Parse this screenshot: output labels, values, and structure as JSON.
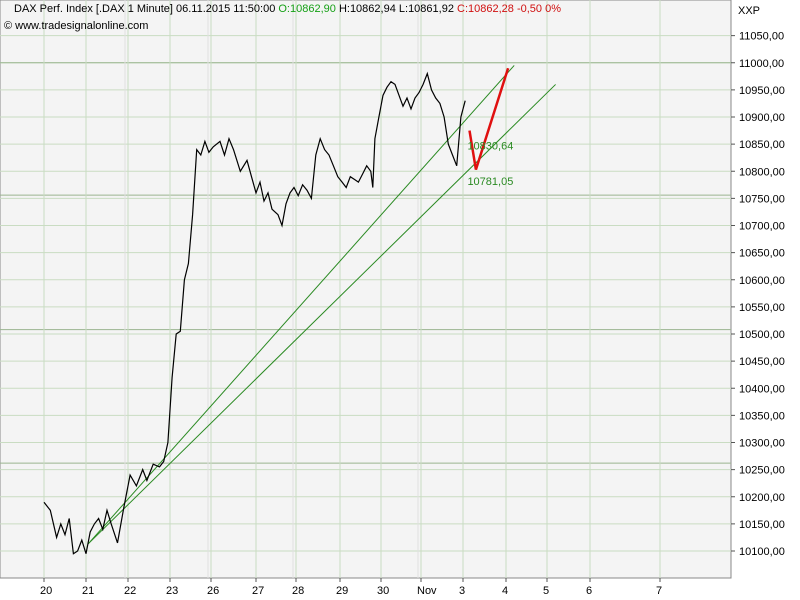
{
  "header": {
    "title": "DAX Perf. Index [.DAX  1 Minute] 06.11.2015 11:50:00",
    "open": "O:10862,90",
    "high": "H:10862,94",
    "low": "L:10861,92",
    "close": "C:10862,28",
    "change": "-0,50",
    "change_pct": "0%",
    "website": "www.tradesignalonline.com",
    "symbol_label": "XXP"
  },
  "colors": {
    "background": "#ffffff",
    "plot_bg": "#f4f4f4",
    "grid_light": "#c9dcc2",
    "grid_dark": "#9ab58f",
    "price_line": "#000000",
    "trend_line": "#2a8a22",
    "forecast_line": "#e01010",
    "open_color": "#16a016",
    "close_color": "#d01010"
  },
  "chart_data": {
    "type": "line",
    "title": "DAX Perf. Index [.DAX  1 Minute]",
    "x_tick_labels": [
      "20",
      "21",
      "22",
      "23",
      "26",
      "27",
      "28",
      "29",
      "30",
      "Nov",
      "3",
      "4",
      "5",
      "6",
      "7"
    ],
    "y_tick_labels": [
      "10100,00",
      "10150,00",
      "10200,00",
      "10250,00",
      "10300,00",
      "10350,00",
      "10400,00",
      "10450,00",
      "10500,00",
      "10550,00",
      "10600,00",
      "10650,00",
      "10700,00",
      "10750,00",
      "10800,00",
      "10850,00",
      "10900,00",
      "10950,00",
      "11000,00",
      "11050,00"
    ],
    "ylim": [
      10070,
      11085
    ],
    "xlim": [
      19.2,
      29.3
    ],
    "grid": true,
    "horizontal_levels": [
      11000,
      10756,
      10508,
      10262
    ],
    "price_series": {
      "name": "DAX",
      "points": [
        [
          19.2,
          10190
        ],
        [
          19.35,
          10175
        ],
        [
          19.5,
          10125
        ],
        [
          19.6,
          10150
        ],
        [
          19.7,
          10130
        ],
        [
          19.8,
          10160
        ],
        [
          19.9,
          10095
        ],
        [
          20.0,
          10100
        ],
        [
          20.1,
          10120
        ],
        [
          20.2,
          10095
        ],
        [
          20.3,
          10135
        ],
        [
          20.4,
          10150
        ],
        [
          20.5,
          10160
        ],
        [
          20.6,
          10140
        ],
        [
          20.7,
          10175
        ],
        [
          20.8,
          10150
        ],
        [
          20.95,
          10115
        ],
        [
          21.1,
          10180
        ],
        [
          21.25,
          10240
        ],
        [
          21.4,
          10220
        ],
        [
          21.55,
          10250
        ],
        [
          21.65,
          10230
        ],
        [
          21.8,
          10260
        ],
        [
          21.95,
          10255
        ],
        [
          22.05,
          10265
        ],
        [
          22.15,
          10300
        ],
        [
          22.25,
          10420
        ],
        [
          22.35,
          10500
        ],
        [
          22.45,
          10505
        ],
        [
          22.55,
          10600
        ],
        [
          22.65,
          10630
        ],
        [
          22.75,
          10720
        ],
        [
          22.85,
          10840
        ],
        [
          22.95,
          10830
        ],
        [
          23.05,
          10855
        ],
        [
          23.15,
          10835
        ],
        [
          23.25,
          10845
        ],
        [
          23.4,
          10855
        ],
        [
          23.5,
          10830
        ],
        [
          23.6,
          10860
        ],
        [
          23.7,
          10840
        ],
        [
          23.85,
          10800
        ],
        [
          24.0,
          10820
        ],
        [
          24.1,
          10790
        ],
        [
          24.2,
          10760
        ],
        [
          24.3,
          10780
        ],
        [
          24.4,
          10745
        ],
        [
          24.5,
          10760
        ],
        [
          24.6,
          10730
        ],
        [
          24.75,
          10720
        ],
        [
          24.85,
          10700
        ],
        [
          24.95,
          10740
        ],
        [
          25.05,
          10760
        ],
        [
          25.15,
          10770
        ],
        [
          25.25,
          10755
        ],
        [
          25.35,
          10775
        ],
        [
          25.45,
          10765
        ],
        [
          25.55,
          10750
        ],
        [
          25.65,
          10830
        ],
        [
          25.75,
          10860
        ],
        [
          25.85,
          10840
        ],
        [
          25.95,
          10830
        ],
        [
          26.05,
          10810
        ],
        [
          26.15,
          10790
        ],
        [
          26.25,
          10780
        ],
        [
          26.35,
          10770
        ],
        [
          26.45,
          10790
        ],
        [
          26.55,
          10785
        ],
        [
          26.65,
          10780
        ],
        [
          26.75,
          10795
        ],
        [
          26.85,
          10810
        ],
        [
          26.95,
          10800
        ],
        [
          27.0,
          10770
        ],
        [
          27.05,
          10860
        ],
        [
          27.15,
          10900
        ],
        [
          27.25,
          10940
        ],
        [
          27.35,
          10955
        ],
        [
          27.45,
          10965
        ],
        [
          27.55,
          10960
        ],
        [
          27.65,
          10940
        ],
        [
          27.75,
          10920
        ],
        [
          27.85,
          10935
        ],
        [
          27.95,
          10915
        ],
        [
          28.05,
          10935
        ],
        [
          28.15,
          10945
        ],
        [
          28.25,
          10960
        ],
        [
          28.35,
          10980
        ],
        [
          28.45,
          10950
        ],
        [
          28.55,
          10935
        ],
        [
          28.65,
          10925
        ],
        [
          28.75,
          10900
        ],
        [
          28.85,
          10850
        ],
        [
          28.95,
          10830
        ],
        [
          29.05,
          10810
        ],
        [
          29.15,
          10900
        ],
        [
          29.25,
          10930
        ]
      ]
    },
    "trend_lines": [
      {
        "from": [
          21.05,
          10113
        ],
        "to": [
          31.2,
          10995
        ]
      },
      {
        "from": [
          21.05,
          10113
        ],
        "to": [
          32.2,
          10960
        ]
      }
    ],
    "forecast_line": {
      "points": [
        [
          29.35,
          10875
        ],
        [
          29.5,
          10803
        ],
        [
          30.25,
          10990
        ]
      ]
    },
    "annotations": [
      {
        "text": "10830,64",
        "x": 29.35,
        "y": 10840
      },
      {
        "text": "10781,05",
        "x": 29.35,
        "y": 10775
      }
    ]
  }
}
